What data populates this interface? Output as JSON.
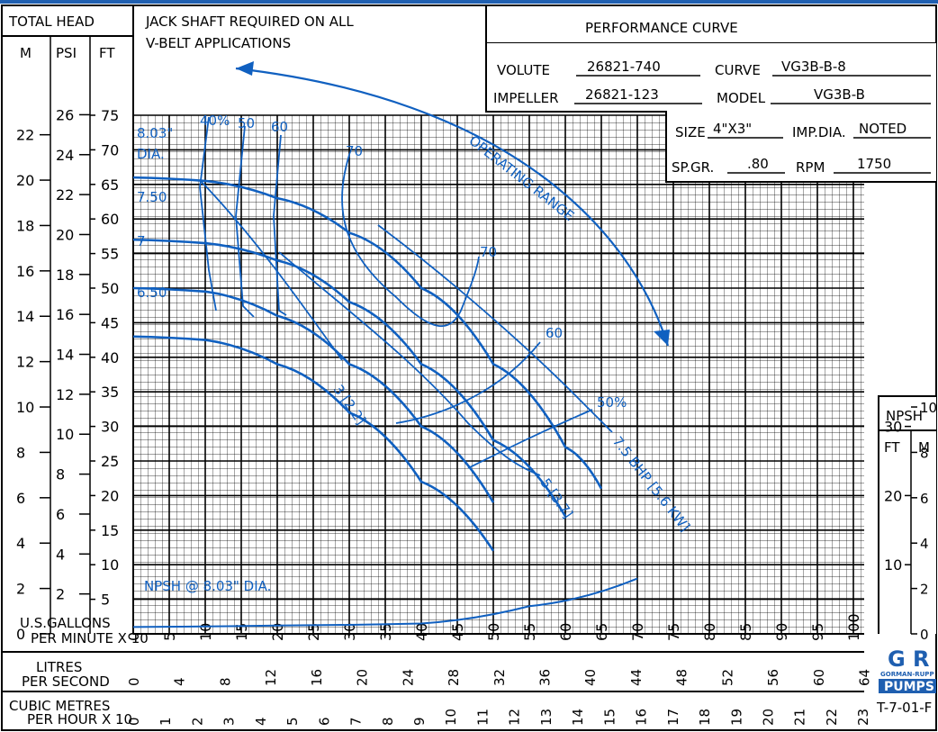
{
  "header": {
    "total_head": "TOTAL HEAD",
    "col_m": "M",
    "col_psi": "PSI",
    "col_ft": "FT",
    "note_line1": "JACK SHAFT REQUIRED ON ALL",
    "note_line2": "V-BELT APPLICATIONS",
    "title": "PERFORMANCE CURVE"
  },
  "spec": {
    "volute_label": "VOLUTE",
    "volute": "26821-740",
    "curve_label": "CURVE",
    "curve": "VG3B-B-8",
    "impeller_label": "IMPELLER",
    "impeller": "26821-123",
    "model_label": "MODEL",
    "model": "VG3B-B",
    "size_label": "SIZE",
    "size": "4\"X3\"",
    "impdia_label": "IMP.DIA.",
    "impdia": "NOTED",
    "spgr_label": "SP.GR.",
    "spgr": ".80",
    "rpm_label": "RPM",
    "rpm": "1750"
  },
  "npsh_box": {
    "title": "NPSH",
    "ft": "FT",
    "m": "M"
  },
  "bottom": {
    "gpm_label1": "U.S.GALLONS",
    "gpm_label2": "PER MINUTE X 10",
    "lps_label1": "LITRES",
    "lps_label2": "PER SECOND",
    "cmh_label1": "CUBIC METRES",
    "cmh_label2": "PER HOUR X 10",
    "doc_id": "T-7-01-F",
    "logo_top": "G R",
    "logo_mid": "GORMAN-RUPP",
    "logo_bot": "PUMPS"
  },
  "annotations": {
    "operating_range": "OPERATING RANGE",
    "npsh_curve": "NPSH @ 8.03\" DIA.",
    "bhp3": "3 [2.2]",
    "bhp5": "5 [3.7]",
    "bhp75": "7.5 BHP [5.6 KW]",
    "eff40": "40%",
    "eff50a": "50",
    "eff60a": "60",
    "eff70a": "70",
    "eff70b": "70",
    "eff60b": "60",
    "eff50b": "50%",
    "dia1": "8.03\"",
    "dia1b": "DIA.",
    "dia2": "7.50",
    "dia3": "7",
    "dia4": "6.50"
  },
  "chart_data": {
    "type": "line",
    "title": "PERFORMANCE CURVE",
    "xlabel": "U.S.GALLONS PER MINUTE X 10",
    "ylabel": "TOTAL HEAD",
    "xlim": [
      0,
      100
    ],
    "ylim": [
      0,
      75
    ],
    "x_ticks": [
      0,
      5,
      10,
      15,
      20,
      25,
      30,
      35,
      40,
      45,
      50,
      55,
      60,
      65,
      70,
      75,
      80,
      85,
      90,
      95,
      100
    ],
    "y_ticks_ft": [
      5,
      10,
      15,
      20,
      25,
      30,
      35,
      40,
      45,
      50,
      55,
      60,
      65,
      70,
      75
    ],
    "y_ticks_psi": [
      2,
      4,
      6,
      8,
      10,
      12,
      14,
      16,
      18,
      20,
      22,
      24,
      26
    ],
    "y_ticks_m": [
      0,
      2,
      4,
      6,
      8,
      10,
      12,
      14,
      16,
      18,
      20,
      22
    ],
    "lps_ticks": [
      "0",
      "4",
      "8",
      "12",
      "16",
      "20",
      "24",
      "28",
      "32",
      "36",
      "40",
      "44",
      "48",
      "52",
      "56",
      "60",
      "64"
    ],
    "cmh_ticks": [
      "0",
      "1",
      "2",
      "3",
      "4",
      "5",
      "6",
      "7",
      "8",
      "9",
      "10",
      "11",
      "12",
      "13",
      "14",
      "15",
      "16",
      "17",
      "18",
      "19",
      "20",
      "21",
      "22",
      "23"
    ],
    "npsh_ft_ticks": [
      "10",
      "20",
      "30"
    ],
    "npsh_m_ticks": [
      "0",
      "2",
      "4",
      "6",
      "8",
      "10"
    ],
    "series": [
      {
        "name": "8.03\"",
        "x": [
          0,
          10,
          20,
          30,
          40,
          50,
          60,
          65
        ],
        "y": [
          66,
          65.5,
          63,
          58,
          50,
          39,
          27,
          21
        ]
      },
      {
        "name": "7.50",
        "x": [
          0,
          10,
          20,
          30,
          40,
          50,
          60
        ],
        "y": [
          57,
          56.5,
          54,
          48,
          39,
          28,
          17
        ]
      },
      {
        "name": "7",
        "x": [
          0,
          10,
          20,
          30,
          40,
          50
        ],
        "y": [
          50,
          49.5,
          46,
          39,
          30,
          19
        ]
      },
      {
        "name": "6.50",
        "x": [
          0,
          10,
          20,
          30,
          40,
          50
        ],
        "y": [
          43,
          42.5,
          39,
          32,
          22,
          12
        ]
      },
      {
        "name": "NPSH @ 8.03\" DIA.",
        "x": [
          0,
          20,
          40,
          55,
          70
        ],
        "y": [
          1,
          1.2,
          1.5,
          4,
          8
        ]
      }
    ]
  }
}
